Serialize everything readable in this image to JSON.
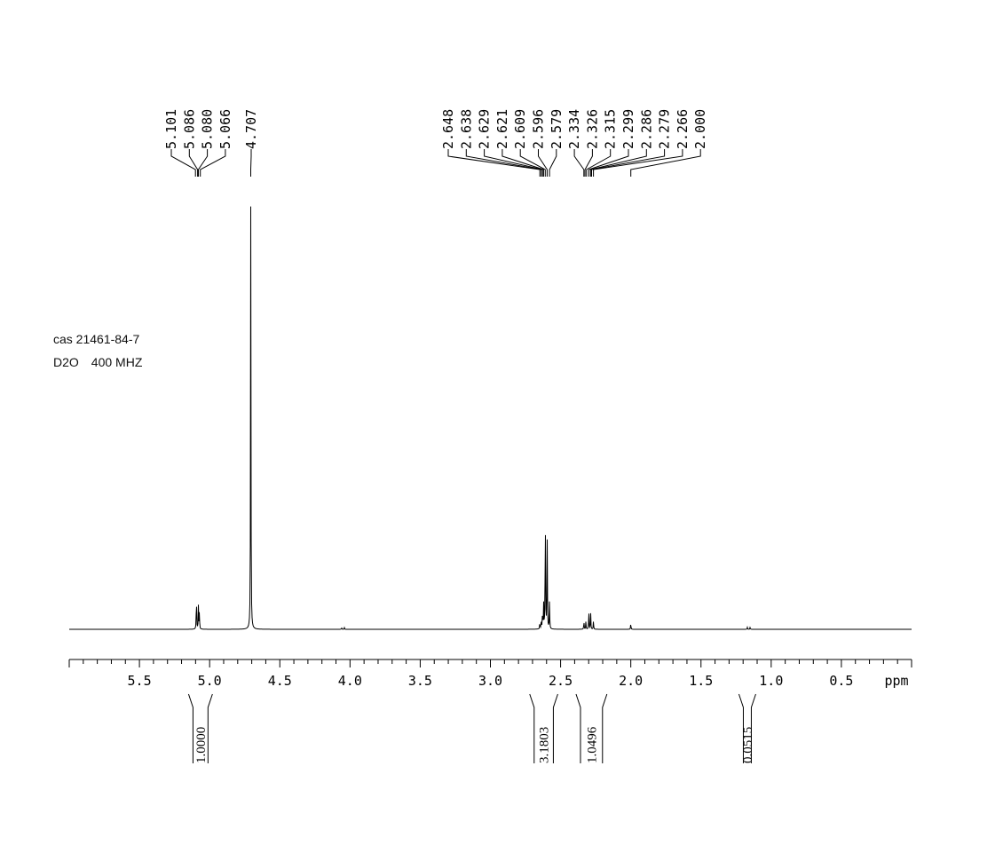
{
  "sample": {
    "cas": "cas 21461-84-7",
    "solvent": "D2O",
    "frequency": "400 MHZ"
  },
  "chart_data": {
    "type": "line",
    "title": "",
    "xlabel": "ppm",
    "ylabel": "",
    "xlim": [
      6.0,
      0.0
    ],
    "x_reversed": true,
    "grid": false,
    "x_tick_labels": [
      "5.5",
      "5.0",
      "4.5",
      "4.0",
      "3.5",
      "3.0",
      "2.5",
      "2.0",
      "1.5",
      "1.0",
      "0.5"
    ],
    "x_ticks": [
      5.5,
      5.0,
      4.5,
      4.0,
      3.5,
      3.0,
      2.5,
      2.0,
      1.5,
      1.0,
      0.5
    ],
    "peak_labels": [
      "5.101",
      "5.086",
      "5.080",
      "5.066",
      "4.707",
      "2.648",
      "2.638",
      "2.629",
      "2.621",
      "2.609",
      "2.596",
      "2.579",
      "2.334",
      "2.326",
      "2.315",
      "2.299",
      "2.286",
      "2.279",
      "2.266",
      "2.000"
    ],
    "integrals": [
      {
        "from": 5.15,
        "to": 4.98,
        "value": "1.0000"
      },
      {
        "from": 2.72,
        "to": 2.52,
        "value": "3.1803"
      },
      {
        "from": 2.39,
        "to": 2.17,
        "value": "1.0496"
      },
      {
        "from": 1.23,
        "to": 1.11,
        "value": "0.0515"
      }
    ],
    "peaks": [
      {
        "ppm": 5.094,
        "height": 0.085
      },
      {
        "ppm": 5.08,
        "height": 0.055
      },
      {
        "ppm": 5.073,
        "height": 0.045
      },
      {
        "ppm": 4.707,
        "height": 1.0
      },
      {
        "ppm": 4.06,
        "height": 0.004
      },
      {
        "ppm": 4.04,
        "height": 0.004
      },
      {
        "ppm": 2.648,
        "height": 0.015
      },
      {
        "ppm": 2.638,
        "height": 0.025
      },
      {
        "ppm": 2.629,
        "height": 0.04
      },
      {
        "ppm": 2.621,
        "height": 0.06
      },
      {
        "ppm": 2.609,
        "height": 0.3
      },
      {
        "ppm": 2.596,
        "height": 0.24
      },
      {
        "ppm": 2.579,
        "height": 0.07
      },
      {
        "ppm": 2.334,
        "height": 0.02
      },
      {
        "ppm": 2.32,
        "height": 0.018
      },
      {
        "ppm": 2.299,
        "height": 0.045
      },
      {
        "ppm": 2.286,
        "height": 0.04
      },
      {
        "ppm": 2.266,
        "height": 0.02
      },
      {
        "ppm": 2.0,
        "height": 0.015
      },
      {
        "ppm": 1.17,
        "height": 0.005
      },
      {
        "ppm": 1.15,
        "height": 0.005
      }
    ]
  }
}
